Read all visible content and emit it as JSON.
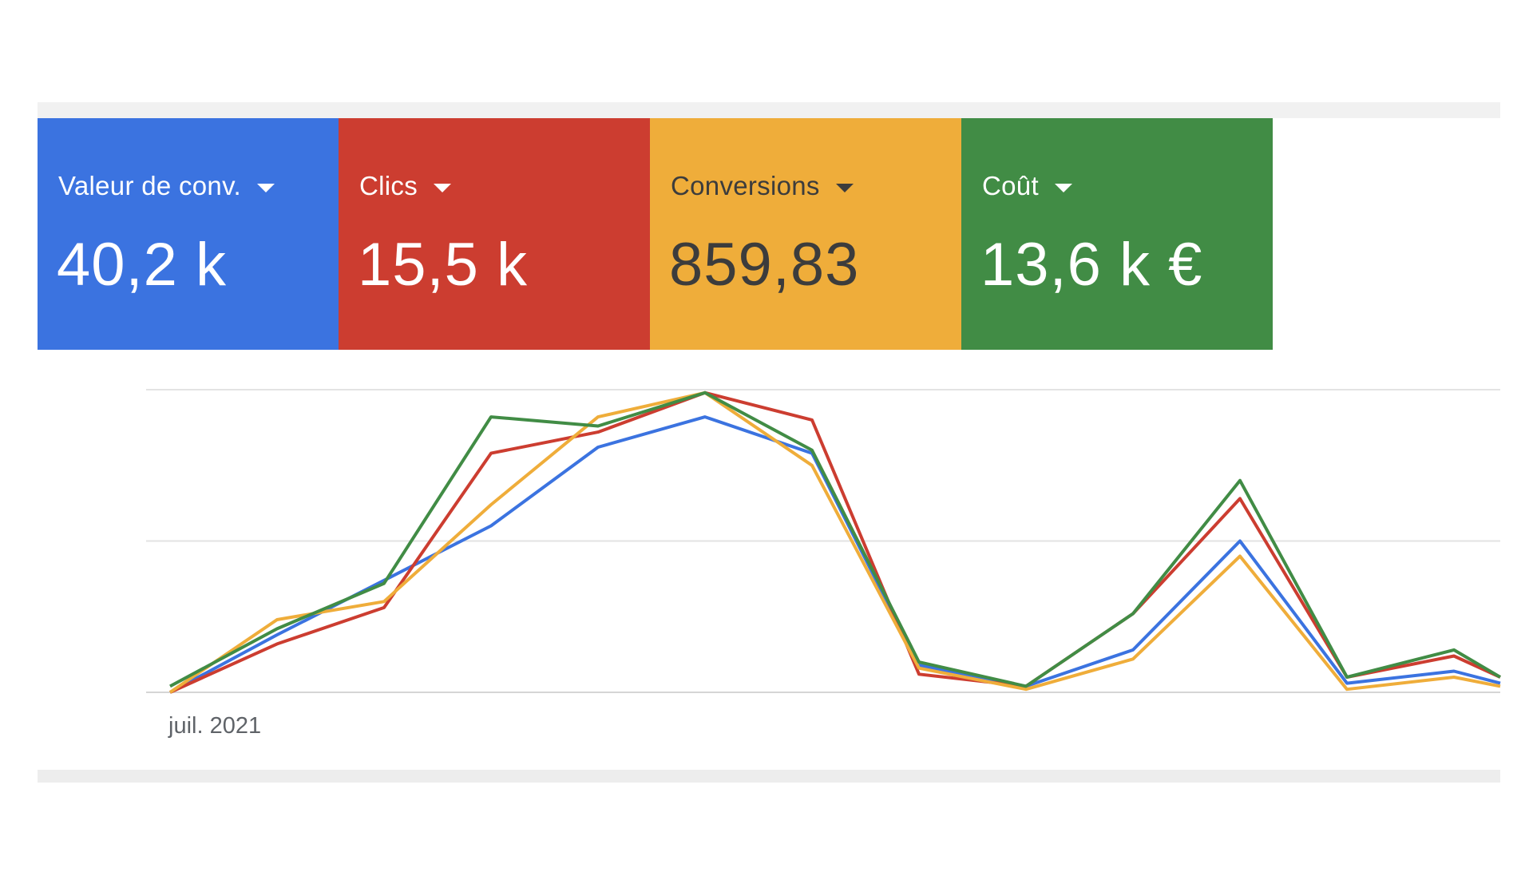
{
  "metrics": [
    {
      "label": "Valeur de conv.",
      "value": "40,2 k",
      "color": "#3b73e0",
      "text_color": "#ffffff"
    },
    {
      "label": "Clics",
      "value": "15,5 k",
      "color": "#cc3d30",
      "text_color": "#ffffff"
    },
    {
      "label": "Conversions",
      "value": "859,83",
      "color": "#efad3a",
      "text_color": "#3c3c3c"
    },
    {
      "label": "Coût",
      "value": "13,6 k €",
      "color": "#418c45",
      "text_color": "#ffffff"
    }
  ],
  "chart_data": {
    "type": "line",
    "x_tick_labels": [
      "juil. 2021"
    ],
    "grid": true,
    "legend": "none",
    "y_range": [
      0,
      100
    ],
    "series": [
      {
        "color": "#3b73e0",
        "values": [
          0,
          19,
          37,
          55,
          81,
          91,
          79,
          9,
          2,
          14,
          50,
          3,
          7,
          3
        ]
      },
      {
        "color": "#cc3d30",
        "values": [
          0,
          16,
          28,
          79,
          86,
          99,
          90,
          6,
          2,
          26,
          64,
          5,
          12,
          5
        ]
      },
      {
        "color": "#efad3a",
        "values": [
          0,
          24,
          30,
          62,
          91,
          99,
          75,
          8,
          1,
          11,
          45,
          1,
          5,
          2
        ]
      },
      {
        "color": "#418c45",
        "values": [
          2,
          21,
          36,
          91,
          88,
          99,
          80,
          10,
          2,
          26,
          70,
          5,
          14,
          5
        ]
      }
    ]
  }
}
